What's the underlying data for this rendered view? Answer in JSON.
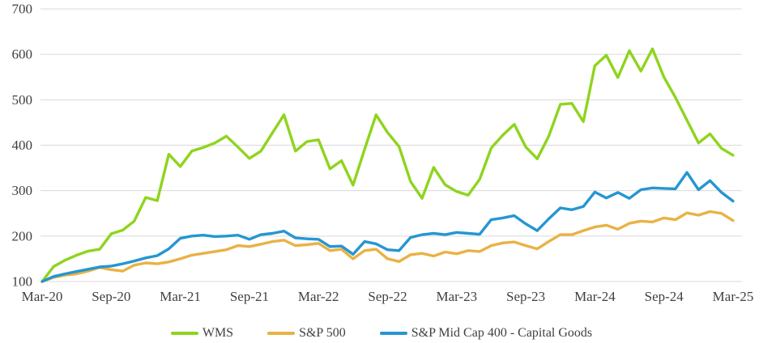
{
  "chart_data": {
    "type": "line",
    "title": "",
    "xlabel": "",
    "ylabel": "",
    "ylim": [
      100,
      700
    ],
    "y_ticks": [
      100,
      200,
      300,
      400,
      500,
      600,
      700
    ],
    "x_tick_labels": [
      "Mar-20",
      "Sep-20",
      "Mar-21",
      "Sep-21",
      "Mar-22",
      "Sep-22",
      "Mar-23",
      "Sep-23",
      "Mar-24",
      "Sep-24",
      "Mar-25"
    ],
    "x_frequency": "monthly",
    "x_range": [
      "Mar-20",
      "Mar-25"
    ],
    "grid": "horizontal-only",
    "legend_position": "bottom-center",
    "background_color": "#FFFFFF",
    "gridline_color": "#D9D9D9",
    "text_color": "#404040",
    "series": [
      {
        "name": "WMS",
        "color": "#8FD41E",
        "values": [
          100,
          133,
          147,
          158,
          167,
          171,
          205,
          213,
          233,
          285,
          278,
          380,
          353,
          387,
          395,
          405,
          420,
          396,
          371,
          387,
          427,
          467,
          387,
          408,
          412,
          348,
          366,
          312,
          391,
          467,
          428,
          397,
          320,
          283,
          351,
          313,
          298,
          290,
          325,
          394,
          422,
          446,
          396,
          370,
          420,
          490,
          492,
          452,
          575,
          598,
          549,
          608,
          563,
          612,
          550,
          505,
          455,
          405,
          425,
          393,
          378
        ]
      },
      {
        "name": "S&P 500",
        "color": "#E9B244",
        "values": [
          100,
          109,
          114,
          117,
          123,
          131,
          126,
          123,
          136,
          141,
          139,
          143,
          150,
          158,
          162,
          166,
          170,
          179,
          177,
          182,
          188,
          191,
          179,
          181,
          184,
          168,
          171,
          150,
          168,
          171,
          150,
          144,
          159,
          162,
          156,
          165,
          161,
          168,
          166,
          179,
          185,
          187,
          179,
          172,
          188,
          203,
          203,
          212,
          220,
          224,
          215,
          228,
          233,
          231,
          240,
          236,
          251,
          246,
          254,
          250,
          234
        ]
      },
      {
        "name": "S&P Mid Cap 400 - Capital Goods",
        "color": "#2596D2",
        "values": [
          100,
          111,
          117,
          122,
          127,
          132,
          134,
          139,
          145,
          152,
          157,
          172,
          195,
          200,
          202,
          199,
          200,
          202,
          193,
          203,
          206,
          211,
          196,
          194,
          193,
          177,
          178,
          160,
          188,
          183,
          170,
          168,
          197,
          203,
          206,
          203,
          208,
          206,
          204,
          236,
          240,
          245,
          227,
          212,
          238,
          262,
          258,
          265,
          297,
          284,
          296,
          283,
          302,
          306,
          305,
          304,
          340,
          302,
          322,
          296,
          277
        ]
      }
    ]
  }
}
